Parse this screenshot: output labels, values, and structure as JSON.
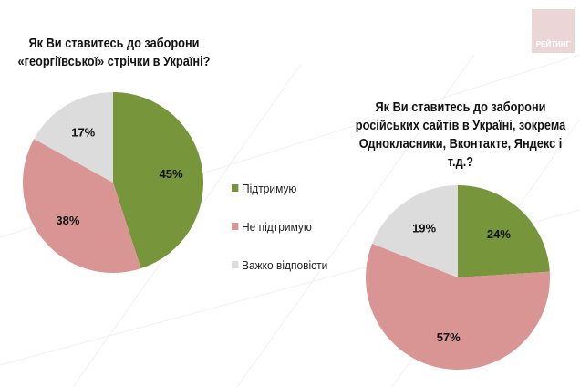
{
  "logo_text": "РЕЙТИНГ",
  "legend": [
    {
      "label": "Підтримую",
      "color": "#77963b"
    },
    {
      "label": "Не підтримую",
      "color": "#d99594"
    },
    {
      "label": "Важко відповісти",
      "color": "#dcdcdc"
    }
  ],
  "chart_data": [
    {
      "type": "pie",
      "title": "Як Ви ставитесь до заборони «георгіївської» стрічки в Україні?",
      "title_lines": [
        "Як Ви ставитесь до заборони",
        "«георгіївської» стрічки в Україні?"
      ],
      "categories": [
        "Підтримую",
        "Не підтримую",
        "Важко відповісти"
      ],
      "values": [
        45,
        38,
        17
      ],
      "data_labels": [
        "45%",
        "38%",
        "17%"
      ],
      "colors": [
        "#77963b",
        "#d99594",
        "#dcdcdc"
      ],
      "legend": "right"
    },
    {
      "type": "pie",
      "title": "Як Ви ставитесь до заборони російських сайтів в Україні, зокрема Однокласники, Вконтакте, Яндекс і т.д.?",
      "title_lines": [
        "Як Ви ставитесь до заборони",
        "російських сайтів в Україні, зокрема",
        "Однокласники, Вконтакте, Яндекс і",
        "т.д.?"
      ],
      "categories": [
        "Підтримую",
        "Не підтримую",
        "Важко відповісти"
      ],
      "values": [
        24,
        57,
        19
      ],
      "data_labels": [
        "24%",
        "57%",
        "19%"
      ],
      "colors": [
        "#77963b",
        "#d99594",
        "#dcdcdc"
      ],
      "legend": "left"
    }
  ]
}
